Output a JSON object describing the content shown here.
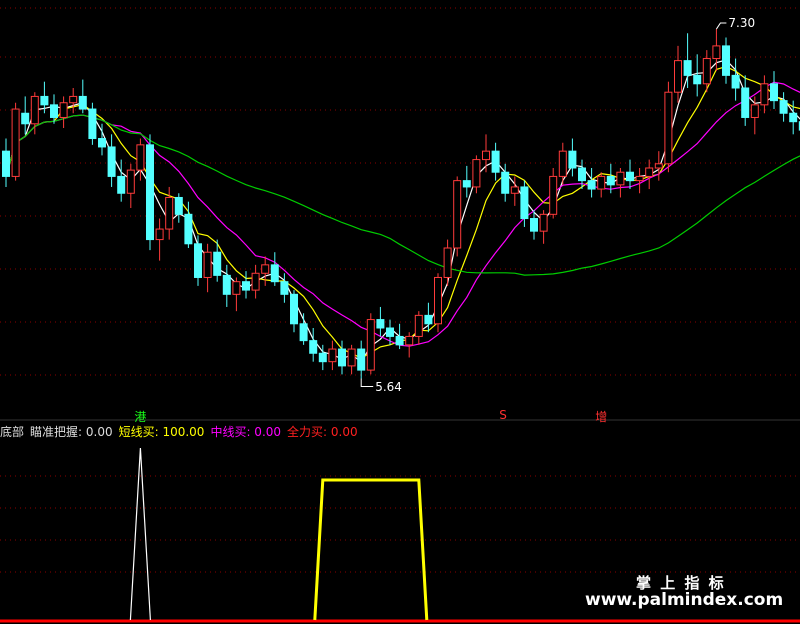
{
  "price_panel": {
    "high_label": "7.30",
    "low_label": "5.64",
    "signals": [
      {
        "text": "港",
        "color": "#19ff19",
        "index": 14
      },
      {
        "text": "S",
        "color": "#ff3030",
        "index": 52
      },
      {
        "text": "增",
        "color": "#ff3030",
        "index": 62
      }
    ]
  },
  "indicator_bar": {
    "items": [
      {
        "text": "底部",
        "color": "#dcdcdc"
      },
      {
        "text": "瞄准把握: 0.00",
        "color": "#dcdcdc"
      },
      {
        "text": "短线买: 100.00",
        "color": "#ffff00"
      },
      {
        "text": "中线买: 0.00",
        "color": "#ff00ff"
      },
      {
        "text": "全力买: 0.00",
        "color": "#ff2020"
      }
    ]
  },
  "watermark": {
    "line1": "掌 上 指 标",
    "line2": "www.palmindex.com"
  },
  "colors": {
    "up": "#ff3b3b",
    "down": "#54ffff",
    "ma_fast": "#ffffff",
    "ma_short": "#ffff00",
    "ma_mid": "#ff00ff",
    "ma_long": "#00cc00",
    "grid": "#8b0000",
    "baseline": "#ff0000"
  },
  "chart_data": {
    "type": "candlestick",
    "ylim": [
      5.5,
      7.4
    ],
    "high": 7.3,
    "low": 5.64,
    "candles": [
      [
        6.72,
        6.78,
        6.55,
        6.6
      ],
      [
        6.6,
        6.95,
        6.58,
        6.92
      ],
      [
        6.9,
        6.98,
        6.8,
        6.85
      ],
      [
        6.85,
        7.0,
        6.8,
        6.98
      ],
      [
        6.98,
        7.05,
        6.9,
        6.94
      ],
      [
        6.94,
        6.99,
        6.85,
        6.88
      ],
      [
        6.88,
        6.98,
        6.83,
        6.95
      ],
      [
        6.95,
        7.02,
        6.9,
        6.98
      ],
      [
        6.98,
        7.06,
        6.9,
        6.92
      ],
      [
        6.92,
        6.95,
        6.75,
        6.78
      ],
      [
        6.78,
        6.85,
        6.7,
        6.74
      ],
      [
        6.74,
        6.8,
        6.55,
        6.6
      ],
      [
        6.6,
        6.68,
        6.48,
        6.52
      ],
      [
        6.52,
        6.66,
        6.45,
        6.63
      ],
      [
        6.63,
        6.78,
        6.58,
        6.75
      ],
      [
        6.75,
        6.8,
        6.25,
        6.3
      ],
      [
        6.3,
        6.4,
        6.2,
        6.35
      ],
      [
        6.35,
        6.55,
        6.3,
        6.5
      ],
      [
        6.5,
        6.52,
        6.38,
        6.42
      ],
      [
        6.42,
        6.48,
        6.26,
        6.28
      ],
      [
        6.28,
        6.32,
        6.08,
        6.12
      ],
      [
        6.12,
        6.28,
        6.05,
        6.24
      ],
      [
        6.24,
        6.3,
        6.1,
        6.13
      ],
      [
        6.13,
        6.18,
        5.98,
        6.04
      ],
      [
        6.04,
        6.12,
        5.96,
        6.1
      ],
      [
        6.1,
        6.15,
        6.02,
        6.06
      ],
      [
        6.06,
        6.18,
        6.02,
        6.14
      ],
      [
        6.14,
        6.22,
        6.08,
        6.18
      ],
      [
        6.18,
        6.24,
        6.08,
        6.1
      ],
      [
        6.1,
        6.14,
        6.0,
        6.04
      ],
      [
        6.04,
        6.06,
        5.86,
        5.9
      ],
      [
        5.9,
        5.95,
        5.8,
        5.82
      ],
      [
        5.82,
        5.88,
        5.72,
        5.76
      ],
      [
        5.76,
        5.8,
        5.68,
        5.72
      ],
      [
        5.72,
        5.82,
        5.68,
        5.78
      ],
      [
        5.78,
        5.82,
        5.66,
        5.7
      ],
      [
        5.7,
        5.8,
        5.66,
        5.78
      ],
      [
        5.78,
        5.82,
        5.64,
        5.68
      ],
      [
        5.68,
        5.95,
        5.66,
        5.92
      ],
      [
        5.92,
        5.98,
        5.84,
        5.88
      ],
      [
        5.88,
        5.92,
        5.8,
        5.84
      ],
      [
        5.84,
        5.9,
        5.78,
        5.8
      ],
      [
        5.8,
        5.86,
        5.74,
        5.84
      ],
      [
        5.84,
        5.96,
        5.8,
        5.94
      ],
      [
        5.94,
        6.0,
        5.86,
        5.9
      ],
      [
        5.9,
        6.14,
        5.86,
        6.12
      ],
      [
        6.12,
        6.3,
        6.08,
        6.26
      ],
      [
        6.26,
        6.6,
        6.22,
        6.58
      ],
      [
        6.58,
        6.65,
        6.5,
        6.55
      ],
      [
        6.55,
        6.7,
        6.52,
        6.68
      ],
      [
        6.68,
        6.8,
        6.62,
        6.72
      ],
      [
        6.72,
        6.76,
        6.58,
        6.62
      ],
      [
        6.62,
        6.66,
        6.48,
        6.52
      ],
      [
        6.52,
        6.6,
        6.46,
        6.55
      ],
      [
        6.55,
        6.58,
        6.36,
        6.4
      ],
      [
        6.4,
        6.44,
        6.3,
        6.34
      ],
      [
        6.34,
        6.44,
        6.28,
        6.42
      ],
      [
        6.42,
        6.64,
        6.4,
        6.6
      ],
      [
        6.6,
        6.76,
        6.56,
        6.72
      ],
      [
        6.72,
        6.78,
        6.6,
        6.64
      ],
      [
        6.64,
        6.68,
        6.54,
        6.58
      ],
      [
        6.58,
        6.64,
        6.5,
        6.54
      ],
      [
        6.54,
        6.62,
        6.5,
        6.6
      ],
      [
        6.6,
        6.66,
        6.52,
        6.56
      ],
      [
        6.56,
        6.64,
        6.5,
        6.62
      ],
      [
        6.62,
        6.68,
        6.54,
        6.58
      ],
      [
        6.58,
        6.64,
        6.52,
        6.6
      ],
      [
        6.6,
        6.68,
        6.54,
        6.64
      ],
      [
        6.64,
        6.72,
        6.58,
        6.66
      ],
      [
        6.66,
        7.05,
        6.62,
        7.0
      ],
      [
        7.0,
        7.22,
        6.95,
        7.15
      ],
      [
        7.15,
        7.28,
        7.02,
        7.08
      ],
      [
        7.08,
        7.18,
        6.98,
        7.04
      ],
      [
        7.04,
        7.2,
        7.0,
        7.16
      ],
      [
        7.16,
        7.3,
        7.1,
        7.22
      ],
      [
        7.22,
        7.26,
        7.04,
        7.08
      ],
      [
        7.08,
        7.16,
        6.96,
        7.02
      ],
      [
        7.02,
        7.08,
        6.84,
        6.88
      ],
      [
        6.88,
        6.98,
        6.8,
        6.94
      ],
      [
        6.94,
        7.08,
        6.9,
        7.04
      ],
      [
        7.04,
        7.1,
        6.92,
        6.96
      ],
      [
        6.96,
        7.0,
        6.86,
        6.9
      ],
      [
        6.9,
        6.96,
        6.8,
        6.86
      ],
      [
        6.86,
        6.92,
        6.78,
        6.82
      ]
    ],
    "indicator": {
      "series": "短线买",
      "ylim": [
        0,
        100
      ],
      "spike_index": 14,
      "plateau_start": 33,
      "plateau_end": 43,
      "value": 100
    }
  }
}
